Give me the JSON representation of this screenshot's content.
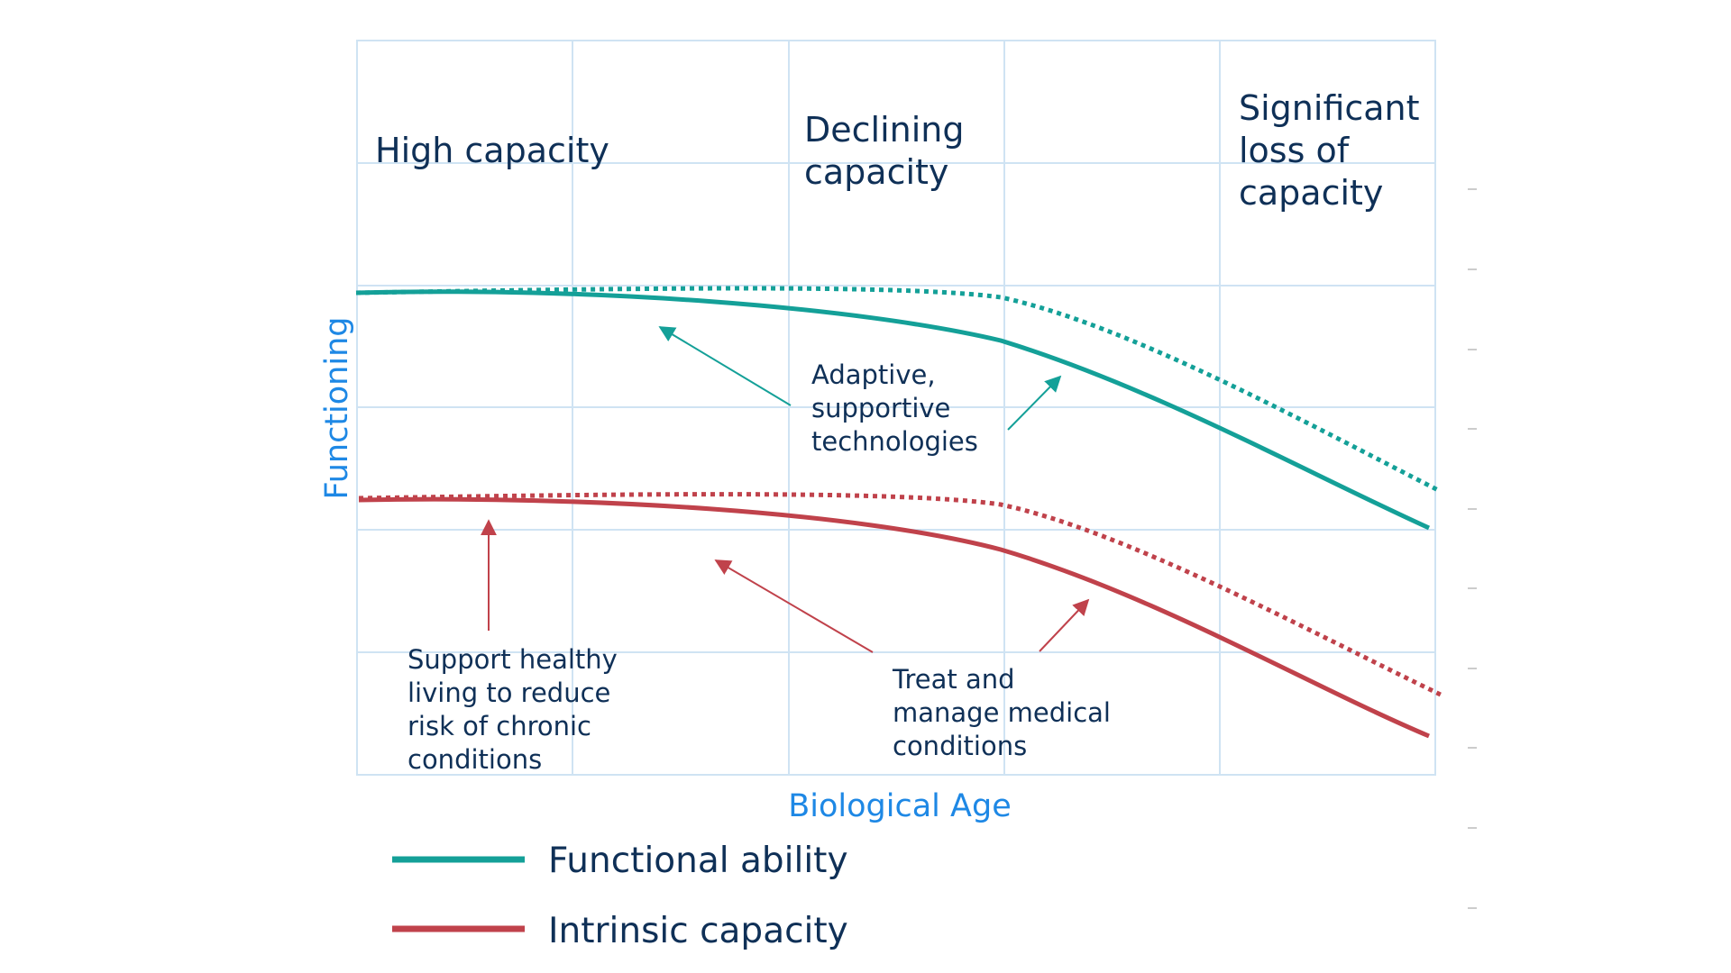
{
  "phases": [
    {
      "lines": [
        "High capacity"
      ]
    },
    {
      "lines": [
        "Declining",
        "capacity"
      ]
    },
    {
      "lines": [
        "Significant",
        "loss of",
        "capacity"
      ]
    }
  ],
  "axes": {
    "x_label": "Biological Age",
    "y_label": "Functioning"
  },
  "annotations": {
    "technologies": [
      "Adaptive,",
      "supportive",
      "technologies"
    ],
    "healthy_living": [
      "Support healthy",
      "living to reduce",
      "risk of chronic",
      "conditions"
    ],
    "medical": [
      "Treat and",
      "manage medical",
      "conditions"
    ]
  },
  "legend": [
    {
      "label": "Functional ability",
      "color": "#14a098"
    },
    {
      "label": "Intrinsic capacity",
      "color": "#c0424b"
    }
  ],
  "colors": {
    "teal": "#14a098",
    "red": "#c0424b",
    "grid": "#cfe3f3",
    "axis_text": "#1e88e5",
    "text": "#0f3057"
  }
}
